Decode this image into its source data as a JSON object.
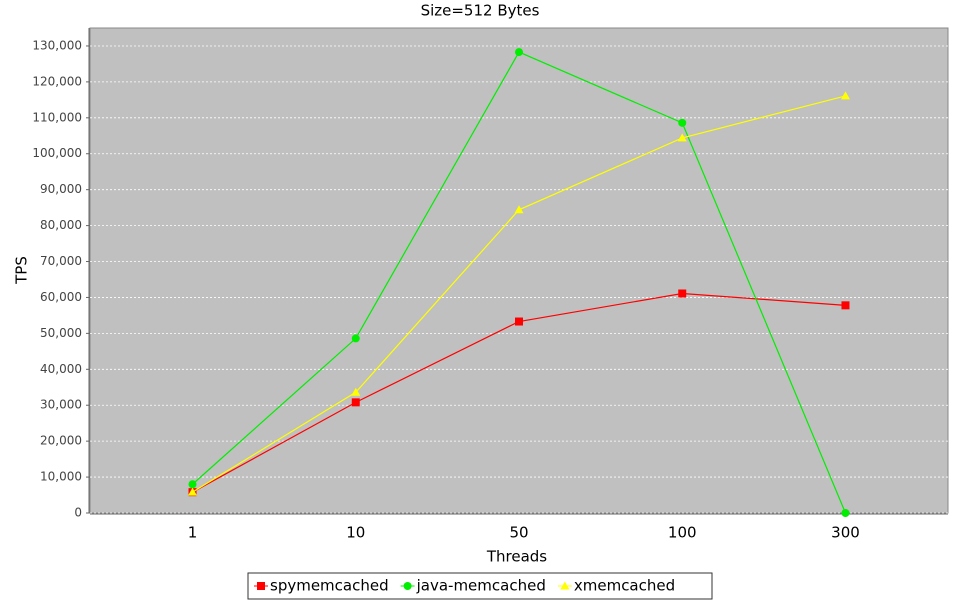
{
  "chart_data": {
    "type": "line",
    "title": "Size=512 Bytes",
    "x_label": "Threads",
    "y_label": "TPS",
    "categories": [
      "1",
      "10",
      "50",
      "100",
      "300"
    ],
    "series": [
      {
        "name": "spymemcached",
        "color": "#ff0000",
        "marker": "square",
        "values": [
          5800,
          30800,
          53300,
          61100,
          57800
        ]
      },
      {
        "name": "java-memcached",
        "color": "#00ee00",
        "marker": "circle",
        "values": [
          8000,
          48600,
          128300,
          108600,
          0
        ]
      },
      {
        "name": "xmemcached",
        "color": "#ffff00",
        "marker": "triangle",
        "values": [
          5800,
          33600,
          84400,
          104400,
          116100
        ]
      }
    ],
    "ylim": [
      0,
      135000
    ],
    "yticks": [
      0,
      {
        "value": 10000,
        "label": "10,000"
      },
      {
        "value": 20000,
        "label": "20,000"
      },
      {
        "value": 30000,
        "label": "30,000"
      },
      {
        "value": 40000,
        "label": "40,000"
      },
      {
        "value": 50000,
        "label": "50,000"
      },
      {
        "value": 60000,
        "label": "60,000"
      },
      {
        "value": 70000,
        "label": "70,000"
      },
      {
        "value": 80000,
        "label": "80,000"
      },
      {
        "value": 90000,
        "label": "90,000"
      },
      {
        "value": 100000,
        "label": "100,000"
      },
      {
        "value": 110000,
        "label": "110,000"
      },
      {
        "value": 120000,
        "label": "120,000"
      },
      {
        "value": 130000,
        "label": "130,000"
      }
    ],
    "grid": true,
    "legend": "bottom"
  }
}
